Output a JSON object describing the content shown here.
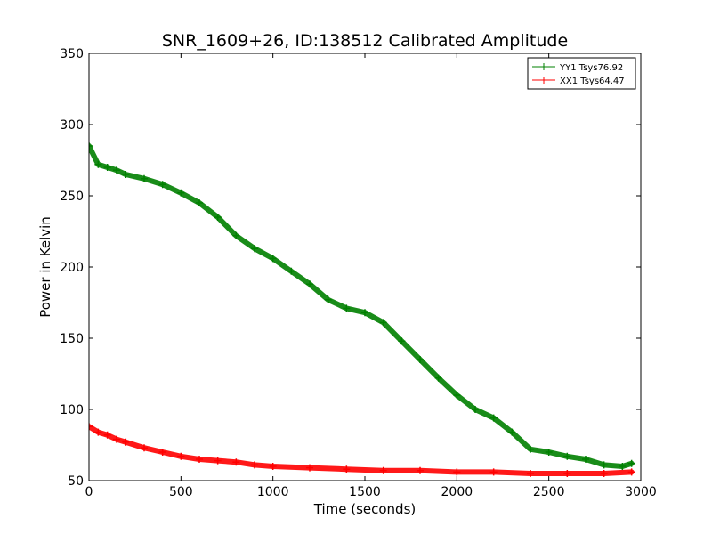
{
  "chart_data": {
    "type": "line",
    "title": "SNR_1609+26, ID:138512 Calibrated Amplitude",
    "xlabel": "Time (seconds)",
    "ylabel": "Power in Kelvin",
    "xlim": [
      0,
      3000
    ],
    "ylim": [
      50,
      350
    ],
    "xticks": [
      "0",
      "500",
      "1000",
      "1500",
      "2000",
      "2500",
      "3000"
    ],
    "yticks": [
      "50",
      "100",
      "150",
      "200",
      "250",
      "300",
      "350"
    ],
    "grid": false,
    "legend_position": "top-right",
    "series": [
      {
        "name": "YY1 Tsys76.92",
        "color": "#008000",
        "marker": "plus",
        "x": [
          0,
          50,
          100,
          150,
          200,
          300,
          400,
          500,
          600,
          700,
          800,
          900,
          1000,
          1100,
          1200,
          1300,
          1400,
          1500,
          1600,
          1700,
          1800,
          1900,
          2000,
          2100,
          2200,
          2300,
          2400,
          2500,
          2600,
          2700,
          2800,
          2900,
          2950
        ],
        "y": [
          285,
          272,
          270,
          268,
          265,
          262,
          258,
          252,
          245,
          235,
          222,
          213,
          206,
          197,
          188,
          177,
          171,
          168,
          161,
          148,
          135,
          122,
          110,
          100,
          94,
          84,
          72,
          70,
          67,
          65,
          61,
          60,
          62
        ]
      },
      {
        "name": "XX1 Tsys64.47",
        "color": "#ff0000",
        "marker": "plus",
        "x": [
          0,
          50,
          100,
          150,
          200,
          300,
          400,
          500,
          600,
          700,
          800,
          900,
          1000,
          1200,
          1400,
          1600,
          1800,
          2000,
          2200,
          2400,
          2600,
          2800,
          2950
        ],
        "y": [
          88,
          84,
          82,
          79,
          77,
          73,
          70,
          67,
          65,
          64,
          63,
          61,
          60,
          59,
          58,
          57,
          57,
          56,
          56,
          55,
          55,
          55,
          56
        ]
      }
    ]
  }
}
